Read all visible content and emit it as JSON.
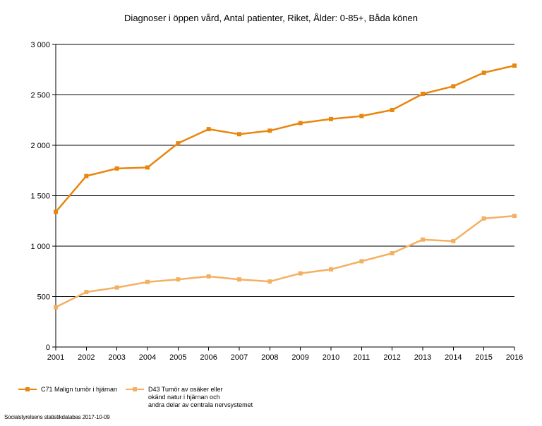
{
  "chart_data": {
    "type": "line",
    "title": "Diagnoser i öppen vård, Antal patienter, Riket, Ålder: 0-85+, Båda könen",
    "xlabel": "",
    "ylabel": "",
    "categories": [
      "2001",
      "2002",
      "2003",
      "2004",
      "2005",
      "2006",
      "2007",
      "2008",
      "2009",
      "2010",
      "2011",
      "2012",
      "2013",
      "2014",
      "2015",
      "2016"
    ],
    "y_ticks": [
      0,
      500,
      1000,
      1500,
      2000,
      2500,
      3000
    ],
    "y_tick_labels": [
      "0",
      "500",
      "1 000",
      "1 500",
      "2 000",
      "2 500",
      "3 000"
    ],
    "ylim": [
      0,
      3000
    ],
    "grid": true,
    "legend_position": "bottom-left",
    "series": [
      {
        "name": "C71 Malign tumör i hjärnan",
        "color": "#e8870e",
        "values": [
          1340,
          1695,
          1770,
          1780,
          2020,
          2160,
          2110,
          2145,
          2220,
          2260,
          2290,
          2350,
          2510,
          2585,
          2720,
          2790
        ]
      },
      {
        "name": "D43 Tumör av osäker eller\nokänd natur i hjärnan och\nandra delar av centrala nervsystemet",
        "color": "#f4b062",
        "values": [
          395,
          545,
          590,
          645,
          670,
          700,
          670,
          650,
          730,
          770,
          850,
          930,
          1065,
          1050,
          1275,
          1300
        ]
      }
    ]
  },
  "source": "Socialstyrelsens statistikdatabas 2017-10-09"
}
